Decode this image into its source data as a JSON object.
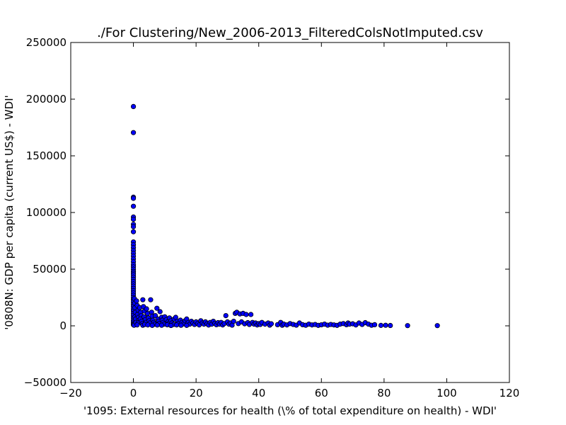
{
  "chart_data": {
    "type": "scatter",
    "title": "./For Clustering/New_2006-2013_FilteredColsNotImputed.csv",
    "xlabel": "'1095: External resources for health  (\\% of total expenditure on health) - WDI'",
    "ylabel": "'0808N: GDP per capita  (current US$) - WDI'",
    "xlim": [
      -20,
      120
    ],
    "ylim": [
      -50000,
      250000
    ],
    "xticks": [
      -20,
      0,
      20,
      40,
      60,
      80,
      100,
      120
    ],
    "yticks": [
      -50000,
      0,
      50000,
      100000,
      150000,
      200000,
      250000
    ],
    "xtick_labels": [
      "−20",
      "0",
      "20",
      "40",
      "60",
      "80",
      "100",
      "120"
    ],
    "ytick_labels": [
      "−50000",
      "0",
      "50000",
      "100000",
      "150000",
      "200000",
      "250000"
    ],
    "grid": false,
    "marker_color": "#0000ff",
    "marker_edge": "#000000",
    "series": [
      {
        "points": [
          [
            0,
            193500
          ],
          [
            0,
            170500
          ],
          [
            0,
            113500
          ],
          [
            0,
            112500
          ],
          [
            0,
            105500
          ],
          [
            0,
            96000
          ],
          [
            0,
            94000
          ],
          [
            0,
            89500
          ],
          [
            0,
            87500
          ],
          [
            0,
            83000
          ],
          [
            0,
            74000
          ],
          [
            0,
            71500
          ],
          [
            0,
            69000
          ],
          [
            0,
            66500
          ],
          [
            0,
            64000
          ],
          [
            0,
            61500
          ],
          [
            0,
            59000
          ],
          [
            0,
            56500
          ],
          [
            0,
            54000
          ],
          [
            0,
            52000
          ],
          [
            0,
            50000
          ],
          [
            0,
            48000
          ],
          [
            0,
            46500
          ],
          [
            0,
            45000
          ],
          [
            0,
            43000
          ],
          [
            0,
            41000
          ],
          [
            0,
            39000
          ],
          [
            0,
            37000
          ],
          [
            0,
            35000
          ],
          [
            0,
            33000
          ],
          [
            0,
            31000
          ],
          [
            0,
            29000
          ],
          [
            0,
            27000
          ],
          [
            0,
            25000
          ],
          [
            0,
            23000
          ],
          [
            0,
            21000
          ],
          [
            0,
            19000
          ],
          [
            0,
            17000
          ],
          [
            0,
            15000
          ],
          [
            0,
            13000
          ],
          [
            0,
            11000
          ],
          [
            0,
            9000
          ],
          [
            0,
            7000
          ],
          [
            0,
            5000
          ],
          [
            0,
            3500
          ],
          [
            0,
            2000
          ],
          [
            0,
            1000
          ],
          [
            0.2,
            500
          ],
          [
            0.3,
            24000
          ],
          [
            0.4,
            20000
          ],
          [
            0.5,
            16000
          ],
          [
            0.6,
            12000
          ],
          [
            0.5,
            8000
          ],
          [
            0.7,
            6000
          ],
          [
            0.8,
            3000
          ],
          [
            1,
            22000
          ],
          [
            1.2,
            18000
          ],
          [
            1.5,
            14000
          ],
          [
            1.3,
            10000
          ],
          [
            1.6,
            7500
          ],
          [
            1.8,
            5000
          ],
          [
            1.5,
            2500
          ],
          [
            1.2,
            800
          ],
          [
            2,
            16000
          ],
          [
            2.3,
            12000
          ],
          [
            2.5,
            9000
          ],
          [
            2.2,
            6000
          ],
          [
            2.6,
            4000
          ],
          [
            2.8,
            2000
          ],
          [
            3,
            500
          ],
          [
            3,
            23000
          ],
          [
            3.2,
            17000
          ],
          [
            3.5,
            13000
          ],
          [
            3.4,
            8000
          ],
          [
            3.8,
            5500
          ],
          [
            4,
            3000
          ],
          [
            3.6,
            1200
          ],
          [
            4.2,
            15000
          ],
          [
            4.5,
            11000
          ],
          [
            4.8,
            7000
          ],
          [
            5,
            4500
          ],
          [
            5.2,
            2500
          ],
          [
            4.6,
            800
          ],
          [
            5.5,
            23000
          ],
          [
            5.8,
            12000
          ],
          [
            6,
            8500
          ],
          [
            6.2,
            5000
          ],
          [
            6.5,
            3000
          ],
          [
            6.8,
            1500
          ],
          [
            6,
            400
          ],
          [
            7,
            9000
          ],
          [
            7.5,
            15500
          ],
          [
            7.8,
            6000
          ],
          [
            8,
            4000
          ],
          [
            8.2,
            2000
          ],
          [
            7.6,
            700
          ],
          [
            8.5,
            12500
          ],
          [
            9,
            7500
          ],
          [
            9.2,
            5000
          ],
          [
            9.5,
            3000
          ],
          [
            9.8,
            1500
          ],
          [
            9,
            500
          ],
          [
            10,
            8000
          ],
          [
            10.5,
            5500
          ],
          [
            11,
            3500
          ],
          [
            11.2,
            2000
          ],
          [
            10.8,
            900
          ],
          [
            11.5,
            7000
          ],
          [
            12,
            4500
          ],
          [
            12.3,
            2500
          ],
          [
            12.8,
            1200
          ],
          [
            12,
            300
          ],
          [
            13,
            6000
          ],
          [
            13.5,
            7500
          ],
          [
            14,
            4000
          ],
          [
            14.3,
            2200
          ],
          [
            13.8,
            800
          ],
          [
            15,
            5000
          ],
          [
            15.5,
            3000
          ],
          [
            16,
            1800
          ],
          [
            15.2,
            500
          ],
          [
            16.5,
            4500
          ],
          [
            17,
            6000
          ],
          [
            17.5,
            3000
          ],
          [
            18,
            1500
          ],
          [
            17,
            400
          ],
          [
            18.5,
            4000
          ],
          [
            19,
            2500
          ],
          [
            19.5,
            1200
          ],
          [
            20,
            3500
          ],
          [
            20.5,
            2000
          ],
          [
            21,
            800
          ],
          [
            21.5,
            4500
          ],
          [
            22,
            2500
          ],
          [
            22.5,
            1500
          ],
          [
            23,
            3500
          ],
          [
            23.5,
            1800
          ],
          [
            24,
            700
          ],
          [
            24.5,
            3000
          ],
          [
            25,
            1500
          ],
          [
            25.5,
            4000
          ],
          [
            26,
            2200
          ],
          [
            26.5,
            1000
          ],
          [
            27,
            2800
          ],
          [
            27.5,
            1500
          ],
          [
            28,
            3000
          ],
          [
            28.5,
            800
          ],
          [
            29,
            2000
          ],
          [
            29.5,
            9000
          ],
          [
            30,
            3500
          ],
          [
            30.5,
            1500
          ],
          [
            31,
            2500
          ],
          [
            31.5,
            600
          ],
          [
            32,
            4000
          ],
          [
            32.5,
            11000
          ],
          [
            33,
            12000
          ],
          [
            33.5,
            2000
          ],
          [
            34,
            10500
          ],
          [
            34.5,
            3500
          ],
          [
            35,
            11000
          ],
          [
            35.5,
            1800
          ],
          [
            36,
            10000
          ],
          [
            36.5,
            2800
          ],
          [
            37,
            1200
          ],
          [
            37.5,
            10000
          ],
          [
            38,
            3000
          ],
          [
            38.5,
            1500
          ],
          [
            39,
            2500
          ],
          [
            39.5,
            800
          ],
          [
            40,
            2000
          ],
          [
            40.5,
            1200
          ],
          [
            41,
            3000
          ],
          [
            42,
            1500
          ],
          [
            43,
            2500
          ],
          [
            43.5,
            600
          ],
          [
            44,
            1800
          ],
          [
            46,
            1000
          ],
          [
            47,
            3000
          ],
          [
            47.5,
            500
          ],
          [
            48,
            1500
          ],
          [
            49,
            800
          ],
          [
            50,
            2000
          ],
          [
            51,
            1200
          ],
          [
            52,
            600
          ],
          [
            53,
            2500
          ],
          [
            54,
            1000
          ],
          [
            55,
            500
          ],
          [
            56,
            1500
          ],
          [
            57,
            800
          ],
          [
            58,
            1200
          ],
          [
            59,
            400
          ],
          [
            60,
            900
          ],
          [
            61,
            1500
          ],
          [
            62,
            600
          ],
          [
            63,
            1200
          ],
          [
            64,
            800
          ],
          [
            65,
            400
          ],
          [
            66,
            1500
          ],
          [
            67,
            2000
          ],
          [
            68,
            1000
          ],
          [
            68.5,
            2500
          ],
          [
            69,
            1500
          ],
          [
            70,
            1800
          ],
          [
            71,
            800
          ],
          [
            72,
            2500
          ],
          [
            73,
            1200
          ],
          [
            74,
            2800
          ],
          [
            75,
            1500
          ],
          [
            76,
            500
          ],
          [
            77,
            1000
          ],
          [
            79,
            400
          ],
          [
            80.5,
            500
          ],
          [
            82,
            300
          ],
          [
            87.5,
            200
          ],
          [
            97,
            200
          ]
        ]
      }
    ]
  }
}
